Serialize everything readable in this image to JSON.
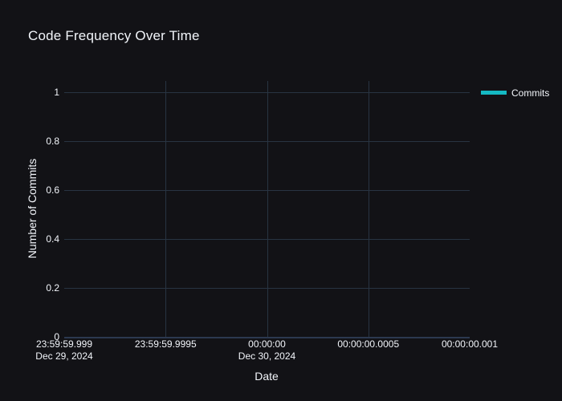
{
  "page": {
    "background": "#121216"
  },
  "chart_data": {
    "type": "line",
    "title": "Code Frequency Over Time",
    "xlabel": "Date",
    "ylabel": "Number of Commits",
    "x_ticks": [
      [
        "23:59:59.999",
        "Dec 29, 2024"
      ],
      [
        "23:59:59.9995",
        ""
      ],
      [
        "00:00:00",
        "Dec 30, 2024"
      ],
      [
        "00:00:00.0005",
        ""
      ],
      [
        "00:00:00.001",
        ""
      ]
    ],
    "y_ticks": [
      "0",
      "0.2",
      "0.4",
      "0.6",
      "0.8",
      "1"
    ],
    "ylim": [
      0,
      1.05
    ],
    "grid": true,
    "legend": {
      "position": "outside-top-right",
      "entries": [
        {
          "label": "Commits",
          "type": "line",
          "color": "#15b9c3"
        }
      ]
    },
    "series": [
      {
        "name": "Commits",
        "color": "#15b9c3",
        "x": [],
        "y": []
      }
    ],
    "colors": {
      "background": "#121216",
      "plot_background": "#121216",
      "grid": "#283442",
      "zeroline": "#2c3950",
      "text": "#f2f5fa"
    }
  }
}
